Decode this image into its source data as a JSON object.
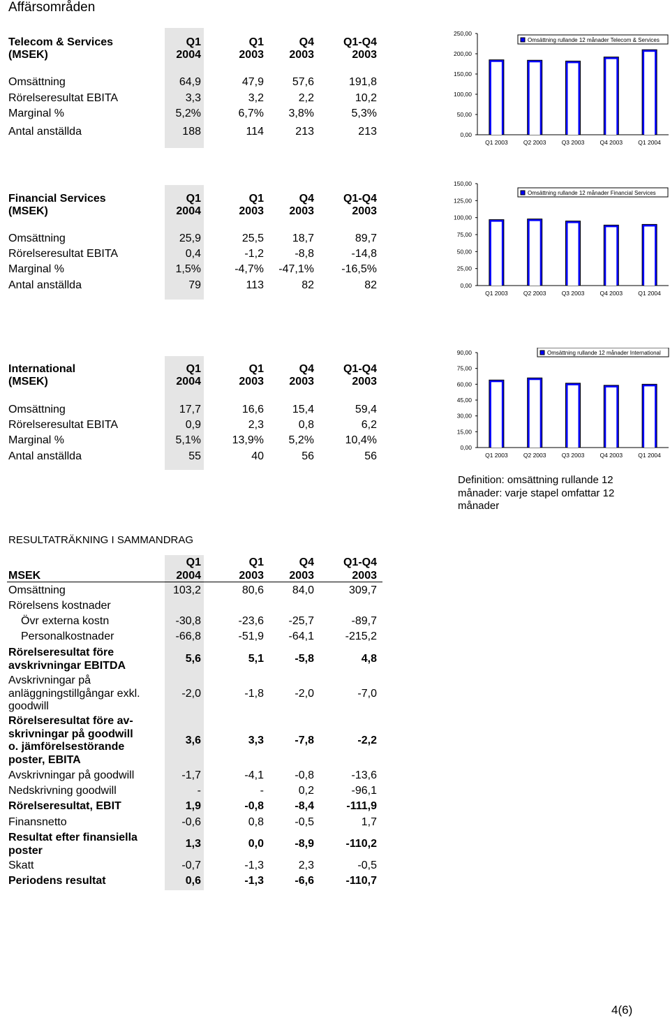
{
  "title": "Affärsområden",
  "segments": [
    {
      "name_line1": "Telecom & Services",
      "name_line2": "(MSEK)",
      "cols": [
        [
          "Q1",
          "2004"
        ],
        [
          "Q1",
          "2003"
        ],
        [
          "Q4",
          "2003"
        ],
        [
          "Q1-Q4",
          "2003"
        ]
      ],
      "rows": [
        {
          "label": "Omsättning",
          "values": [
            "64,9",
            "47,9",
            "57,6",
            "191,8"
          ]
        },
        {
          "label": "Rörelseresultat EBITA",
          "values": [
            "3,3",
            "3,2",
            "2,2",
            "10,2"
          ]
        },
        {
          "label": "Marginal %",
          "values": [
            "5,2%",
            "6,7%",
            "3,8%",
            "5,3%"
          ]
        },
        {
          "label": "Antal anställda",
          "values": [
            "188",
            "114",
            "213",
            "213"
          ]
        }
      ]
    },
    {
      "name_line1": "Financial Services",
      "name_line2": "(MSEK)",
      "cols": [
        [
          "Q1",
          "2004"
        ],
        [
          "Q1",
          "2003"
        ],
        [
          "Q4",
          "2003"
        ],
        [
          "Q1-Q4",
          "2003"
        ]
      ],
      "rows": [
        {
          "label": "Omsättning",
          "values": [
            "25,9",
            "25,5",
            "18,7",
            "89,7"
          ]
        },
        {
          "label": "Rörelseresultat EBITA",
          "values": [
            "0,4",
            "-1,2",
            "-8,8",
            "-14,8"
          ]
        },
        {
          "label": "Marginal %",
          "values": [
            "1,5%",
            "-4,7%",
            "-47,1%",
            "-16,5%"
          ]
        },
        {
          "label": "Antal anställda",
          "values": [
            "79",
            "113",
            "82",
            "82"
          ]
        }
      ]
    },
    {
      "name_line1": "International",
      "name_line2": "(MSEK)",
      "cols": [
        [
          "Q1",
          "2004"
        ],
        [
          "Q1",
          "2003"
        ],
        [
          "Q4",
          "2003"
        ],
        [
          "Q1-Q4",
          "2003"
        ]
      ],
      "rows": [
        {
          "label": "Omsättning",
          "values": [
            "17,7",
            "16,6",
            "15,4",
            "59,4"
          ]
        },
        {
          "label": "Rörelseresultat EBITA",
          "values": [
            "0,9",
            "2,3",
            "0,8",
            "6,2"
          ]
        },
        {
          "label": "Marginal %",
          "values": [
            "5,1%",
            "13,9%",
            "5,2%",
            "10,4%"
          ]
        },
        {
          "label": "Antal anställda",
          "values": [
            "55",
            "40",
            "56",
            "56"
          ]
        }
      ]
    }
  ],
  "chart_data": [
    {
      "type": "bar",
      "title": "Omsättning rullande 12 månader Telecom & Services",
      "categories": [
        "Q1 2003",
        "Q2 2003",
        "Q3 2003",
        "Q4 2003",
        "Q1 2004"
      ],
      "values": [
        185,
        184,
        182,
        192,
        210
      ],
      "ylim": [
        0,
        250
      ],
      "yticks": [
        0,
        50,
        100,
        150,
        200,
        250
      ],
      "ytick_labels": [
        "0,00",
        "50,00",
        "100,00",
        "150,00",
        "200,00",
        "250,00"
      ],
      "legend": "top-right"
    },
    {
      "type": "bar",
      "title": "Omsättning rullande 12 månader Financial Services",
      "categories": [
        "Q1 2003",
        "Q2 2003",
        "Q3 2003",
        "Q4 2003",
        "Q1 2004"
      ],
      "values": [
        97,
        98,
        95,
        89,
        90
      ],
      "ylim": [
        0,
        150
      ],
      "yticks": [
        0,
        25,
        50,
        75,
        100,
        125,
        150
      ],
      "ytick_labels": [
        "0,00",
        "25,00",
        "50,00",
        "75,00",
        "100,00",
        "125,00",
        "150,00"
      ],
      "legend": "top-right"
    },
    {
      "type": "bar",
      "title": "Omsättning rullande 12 månader International",
      "categories": [
        "Q1 2003",
        "Q2 2003",
        "Q3 2003",
        "Q4 2003",
        "Q1 2004"
      ],
      "values": [
        64,
        66,
        61,
        59,
        60
      ],
      "ylim": [
        0,
        90
      ],
      "yticks": [
        0,
        15,
        30,
        45,
        60,
        75,
        90
      ],
      "ytick_labels": [
        "0,00",
        "15,00",
        "30,00",
        "45,00",
        "60,00",
        "75,00",
        "90,00"
      ],
      "legend": "top-right"
    }
  ],
  "definition": "Definition: omsättning rullande 12 månader: varje stapel omfattar 12 månader",
  "income": {
    "heading": "RESULTATRÄKNING I SAMMANDRAG",
    "col_label": "MSEK",
    "cols": [
      [
        "Q1",
        "2004"
      ],
      [
        "Q1",
        "2003"
      ],
      [
        "Q4",
        "2003"
      ],
      [
        "Q1-Q4",
        "2003"
      ]
    ],
    "rows": [
      {
        "lines": [
          "Omsättning"
        ],
        "values": [
          "103,2",
          "80,6",
          "84,0",
          "309,7"
        ],
        "bold": false,
        "indent": false
      },
      {
        "lines": [
          "Rörelsens kostnader"
        ],
        "values": [
          "",
          "",
          "",
          ""
        ],
        "bold": false,
        "indent": false
      },
      {
        "lines": [
          "Övr externa kostn"
        ],
        "values": [
          "-30,8",
          "-23,6",
          "-25,7",
          "-89,7"
        ],
        "bold": false,
        "indent": true
      },
      {
        "lines": [
          "Personalkostnader"
        ],
        "values": [
          "-66,8",
          "-51,9",
          "-64,1",
          "-215,2"
        ],
        "bold": false,
        "indent": true
      },
      {
        "lines": [
          "Rörelseresultat före",
          "avskrivningar EBITDA"
        ],
        "values": [
          "5,6",
          "5,1",
          "-5,8",
          "4,8"
        ],
        "bold": true,
        "indent": false
      },
      {
        "lines": [
          "Avskrivningar på",
          "anläggningstillgångar exkl.",
          "goodwill"
        ],
        "values": [
          "-2,0",
          "-1,8",
          "-2,0",
          "-7,0"
        ],
        "bold": false,
        "indent": false
      },
      {
        "lines": [
          "Rörelseresultat före av-",
          "skrivningar på goodwill",
          "o. jämförelsestörande",
          "poster, EBITA"
        ],
        "values": [
          "3,6",
          "3,3",
          "-7,8",
          "-2,2"
        ],
        "bold": true,
        "indent": false
      },
      {
        "lines": [
          "Avskrivningar på goodwill"
        ],
        "values": [
          "-1,7",
          "-4,1",
          "-0,8",
          "-13,6"
        ],
        "bold": false,
        "indent": false
      },
      {
        "lines": [
          "Nedskrivning goodwill"
        ],
        "values": [
          "-",
          "-",
          "0,2",
          "-96,1"
        ],
        "bold": false,
        "indent": false
      },
      {
        "lines": [
          "Rörelseresultat, EBIT"
        ],
        "values": [
          "1,9",
          "-0,8",
          "-8,4",
          "-111,9"
        ],
        "bold": true,
        "indent": false
      },
      {
        "lines": [
          "Finansnetto"
        ],
        "values": [
          "-0,6",
          "0,8",
          "-0,5",
          "1,7"
        ],
        "bold": false,
        "indent": false
      },
      {
        "lines": [
          "Resultat efter finansiella",
          "poster"
        ],
        "values": [
          "1,3",
          "0,0",
          "-8,9",
          "-110,2"
        ],
        "bold": true,
        "indent": false
      },
      {
        "lines": [
          "Skatt"
        ],
        "values": [
          "-0,7",
          "-1,3",
          "2,3",
          "-0,5"
        ],
        "bold": false,
        "indent": false
      },
      {
        "lines": [
          "Periodens resultat"
        ],
        "values": [
          "0,6",
          "-1,3",
          "-6,6",
          "-110,7"
        ],
        "bold": true,
        "indent": false
      }
    ]
  },
  "page_number": "4(6)",
  "colors": {
    "bar_fill": "#0000ff",
    "bar_stroke": "#000000",
    "shade": "#e5e5e5"
  }
}
